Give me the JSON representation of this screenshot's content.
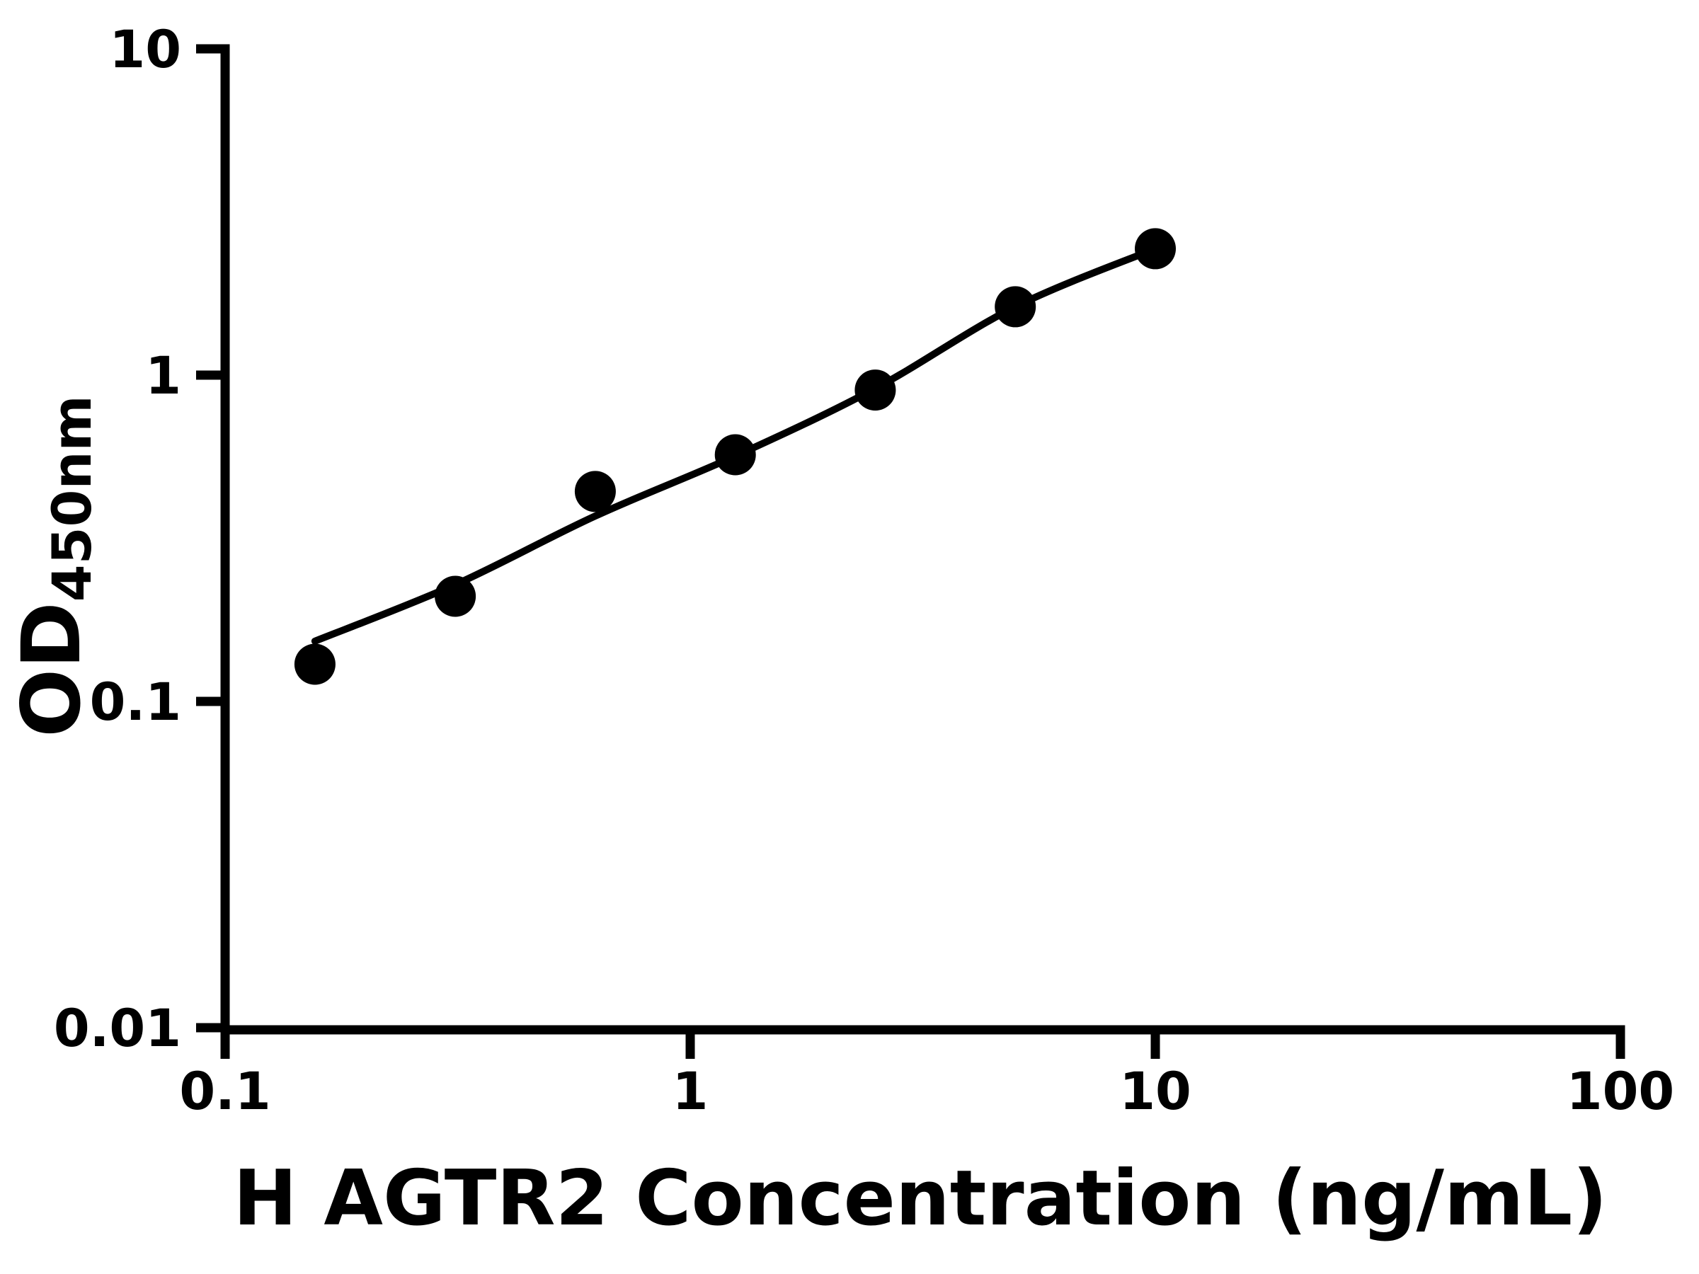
{
  "figure": {
    "background_color": "#ffffff",
    "foreground_color": "#000000"
  },
  "chart_data": {
    "type": "scatter",
    "subtype": "scatter-with-fit-line",
    "title": "",
    "xlabel": "H AGTR2 Concentration (ng/mL)",
    "ylabel_main": "OD",
    "ylabel_sub": "450nm",
    "x_scale": "log",
    "y_scale": "log",
    "x_range": [
      0.1,
      100
    ],
    "y_range": [
      0.01,
      10
    ],
    "grid": false,
    "legend": "none",
    "marker_color": "#000000",
    "line_color": "#000000",
    "x_ticks": [
      {
        "value": 0.1,
        "label": "0.1"
      },
      {
        "value": 1,
        "label": "1"
      },
      {
        "value": 10,
        "label": "10"
      },
      {
        "value": 100,
        "label": "100"
      }
    ],
    "y_ticks": [
      {
        "value": 10,
        "label": "10"
      },
      {
        "value": 1,
        "label": "1"
      },
      {
        "value": 0.1,
        "label": "0.1"
      },
      {
        "value": 0.01,
        "label": "0.01"
      }
    ],
    "points": [
      {
        "conc": 0.156,
        "od": 0.13
      },
      {
        "conc": 0.3125,
        "od": 0.21
      },
      {
        "conc": 0.625,
        "od": 0.44
      },
      {
        "conc": 1.25,
        "od": 0.57
      },
      {
        "conc": 2.5,
        "od": 0.9
      },
      {
        "conc": 5,
        "od": 1.62
      },
      {
        "conc": 10,
        "od": 2.44
      }
    ],
    "fit_curve": [
      {
        "conc": 0.156,
        "od": 0.153
      },
      {
        "conc": 0.3125,
        "od": 0.228
      },
      {
        "conc": 0.625,
        "od": 0.37
      },
      {
        "conc": 1.25,
        "od": 0.565
      },
      {
        "conc": 2.5,
        "od": 0.91
      },
      {
        "conc": 5,
        "od": 1.62
      },
      {
        "conc": 10,
        "od": 2.44
      }
    ]
  }
}
